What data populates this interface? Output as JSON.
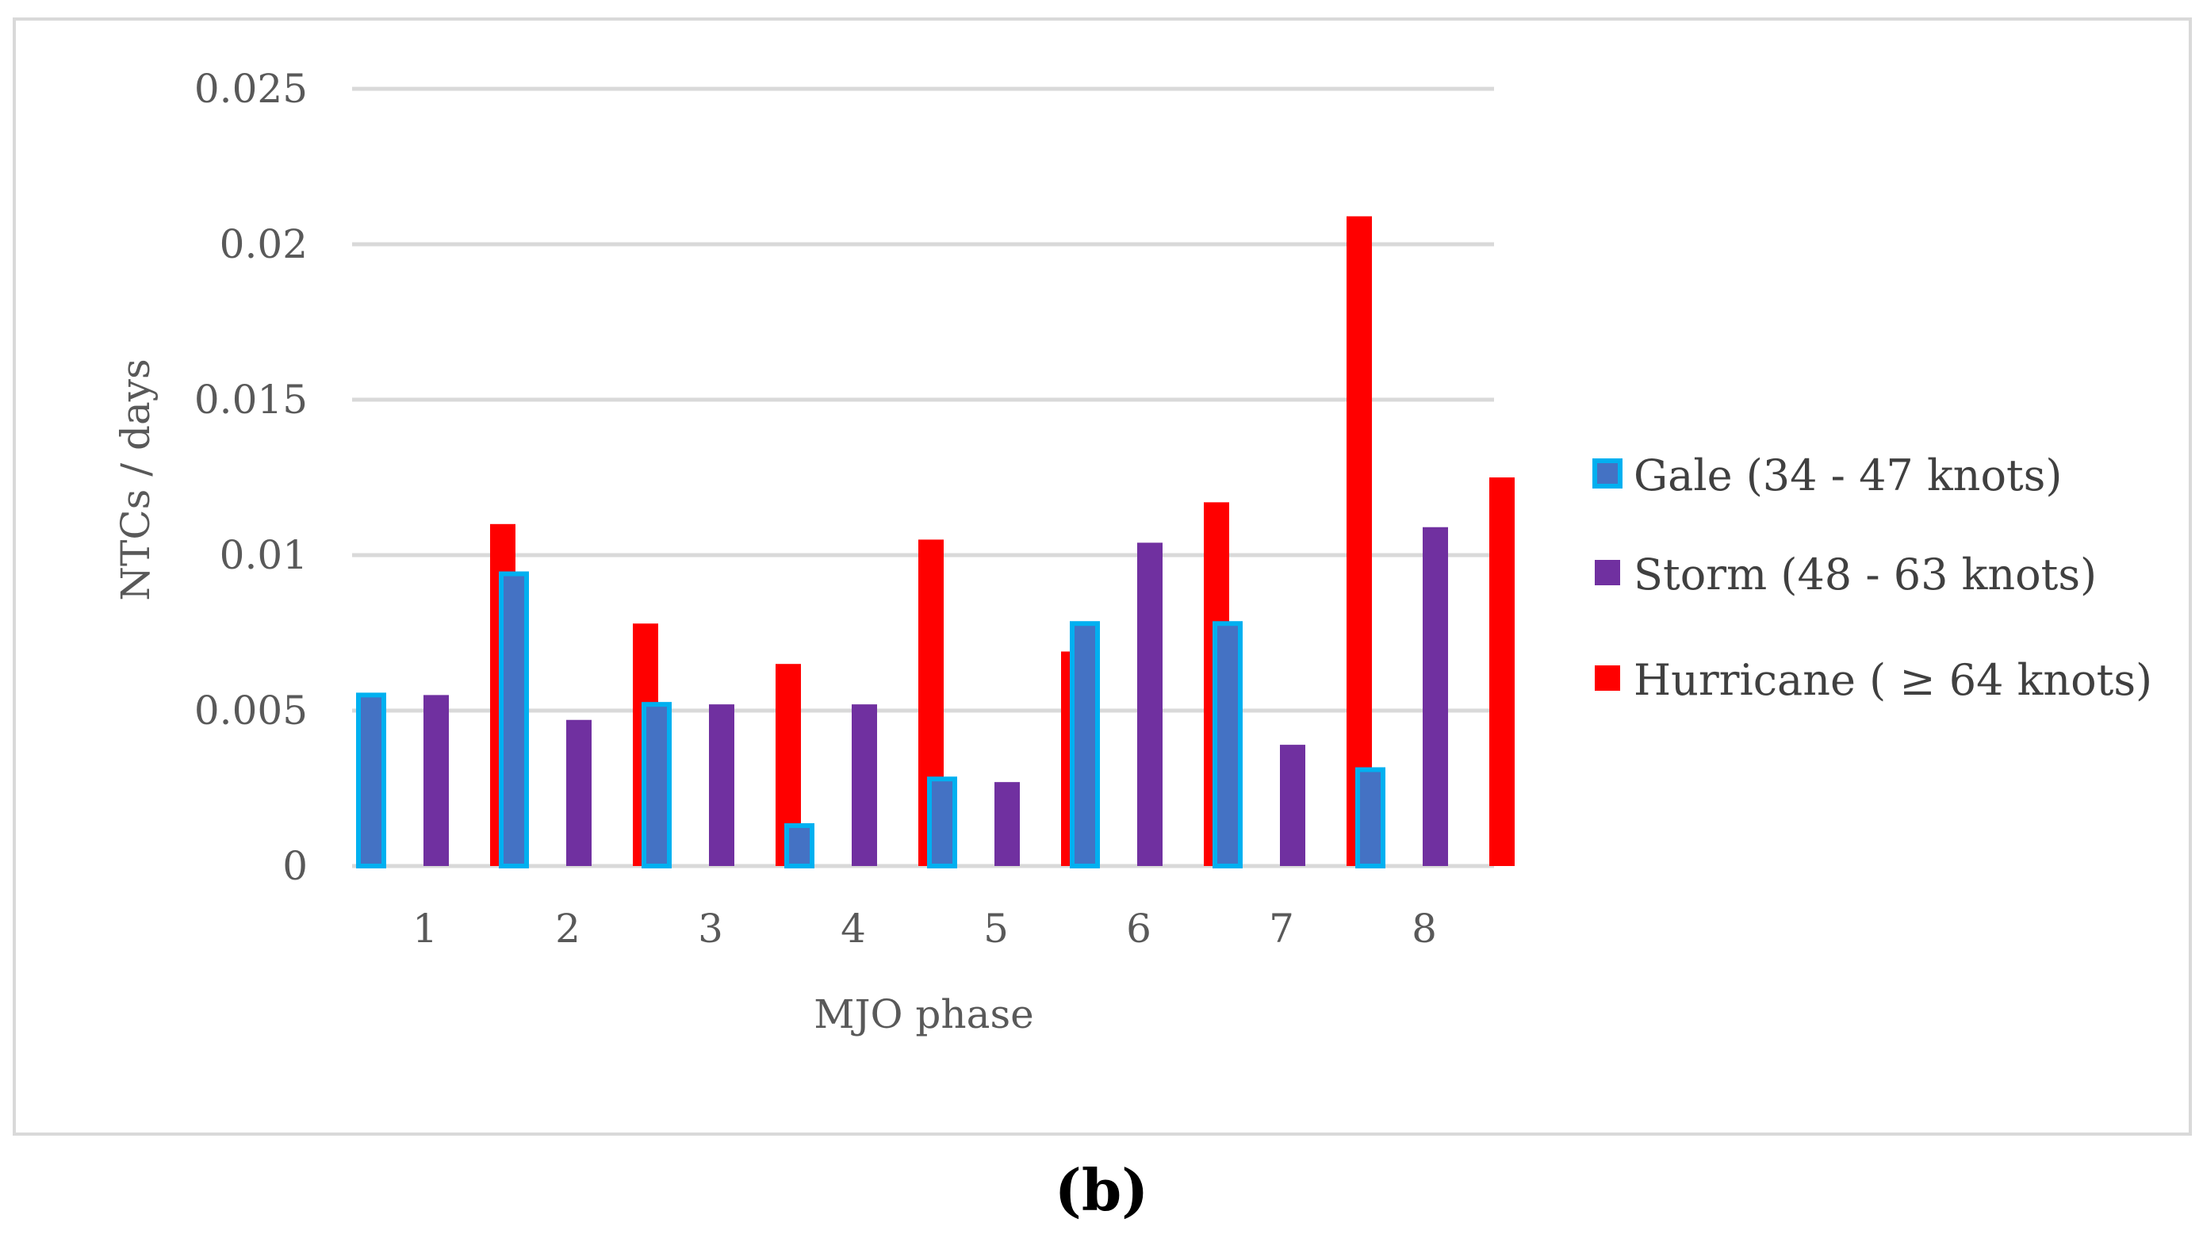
{
  "chart_data": {
    "type": "bar",
    "title": "",
    "xlabel": "MJO phase",
    "ylabel": "NTCs / days",
    "categories": [
      "1",
      "2",
      "3",
      "4",
      "5",
      "6",
      "7",
      "8"
    ],
    "ylim": [
      0,
      0.025
    ],
    "yticks": [
      0,
      0.005,
      0.01,
      0.015,
      0.02,
      0.025
    ],
    "ytick_labels": [
      "0",
      "0.005",
      "0.01",
      "0.015",
      "0.02",
      "0.025"
    ],
    "grid": true,
    "legend_position": "right",
    "series": [
      {
        "name": "Gale (34 - 47 knots)",
        "color": "#4472c4",
        "border_color": "#00b0f0",
        "values": [
          0.0055,
          0.0094,
          0.0052,
          0.0013,
          0.0028,
          0.0078,
          0.0078,
          0.0031
        ]
      },
      {
        "name": "Storm (48 - 63 knots)",
        "color": "#7030a0",
        "border_color": "#7030a0",
        "values": [
          0.0055,
          0.0047,
          0.0052,
          0.0052,
          0.0027,
          0.0104,
          0.0039,
          0.0109
        ]
      },
      {
        "name": "Hurricane ( ≥ 64 knots)",
        "color": "#ff0000",
        "border_color": "#ff0000",
        "values": [
          0.011,
          0.0078,
          0.0065,
          0.0105,
          0.0069,
          0.0117,
          0.0209,
          0.0125
        ]
      }
    ]
  },
  "panel_label": "(b)"
}
